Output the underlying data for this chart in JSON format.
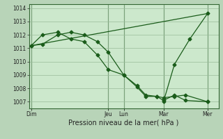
{
  "background_color": "#b8d4b8",
  "plot_bg_color": "#cce8cc",
  "grid_color": "#99bb99",
  "line_color": "#1a5c1a",
  "xlabel": "Pression niveau de la mer( hPa )",
  "ylim": [
    1006.5,
    1014.3
  ],
  "yticks": [
    1007,
    1008,
    1009,
    1010,
    1011,
    1012,
    1013,
    1014
  ],
  "x_tick_labels": [
    "Dim",
    "Jeu",
    "Lun",
    "Mar",
    "Mer"
  ],
  "x_tick_positions": [
    0.0,
    3.5,
    4.2,
    6.0,
    8.0
  ],
  "xlim": [
    -0.1,
    8.5
  ],
  "series1_x": [
    0.0,
    0.5,
    1.2,
    1.8,
    2.4,
    3.0,
    3.5,
    4.2,
    4.8,
    5.2,
    5.7,
    6.0,
    6.5,
    7.0,
    8.0
  ],
  "series1_y": [
    1011.2,
    1011.3,
    1012.0,
    1012.2,
    1012.0,
    1011.5,
    1010.7,
    1009.0,
    1008.1,
    1007.4,
    1007.4,
    1007.1,
    1007.5,
    1007.1,
    1007.0
  ],
  "series2_x": [
    0.0,
    0.5,
    1.2,
    1.8,
    2.4,
    3.0,
    3.5,
    4.2,
    4.8,
    5.2,
    5.7,
    6.0,
    6.5,
    7.0,
    8.0
  ],
  "series2_y": [
    1011.2,
    1012.0,
    1012.2,
    1011.7,
    1011.5,
    1010.5,
    1009.4,
    1009.0,
    1008.2,
    1007.5,
    1007.4,
    1007.3,
    1007.4,
    1007.5,
    1007.0
  ],
  "series3_x": [
    0.0,
    8.0
  ],
  "series3_y": [
    1011.2,
    1013.6
  ],
  "series4_x": [
    6.0,
    6.5,
    7.2,
    8.0
  ],
  "series4_y": [
    1007.0,
    1009.8,
    1011.7,
    1013.6
  ],
  "marker_size": 2.5,
  "linewidth": 0.9
}
